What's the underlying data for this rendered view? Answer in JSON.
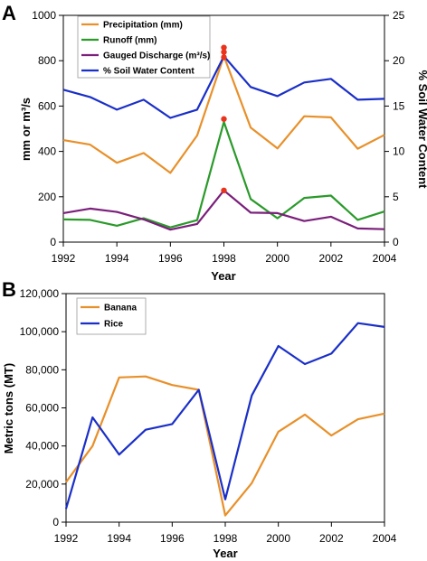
{
  "chart_data": [
    {
      "panel": "A",
      "type": "line",
      "x": [
        1992,
        1993,
        1994,
        1995,
        1996,
        1997,
        1998,
        1999,
        2000,
        2001,
        2002,
        2003,
        2004
      ],
      "xlabel": "Year",
      "ylabel": "mm or m³/s",
      "y2label": "% Soil Water Content",
      "xlim": [
        1992,
        2004
      ],
      "ylim": [
        0,
        1000
      ],
      "y2lim": [
        0,
        25
      ],
      "xticks": [
        "1992",
        "1994",
        "1996",
        "1998",
        "2000",
        "2002",
        "2004"
      ],
      "yticks": [
        "0",
        "200",
        "400",
        "600",
        "800",
        "1000"
      ],
      "y2ticks": [
        "0",
        "5",
        "10",
        "15",
        "20",
        "25"
      ],
      "grid": false,
      "legend_position": "top-left",
      "series": [
        {
          "name": "Precipitation (mm)",
          "color": "#e8902a",
          "axis": "left",
          "values": [
            450,
            430,
            350,
            393,
            305,
            470,
            820,
            505,
            413,
            555,
            550,
            412,
            473
          ]
        },
        {
          "name": "Runoff (mm)",
          "color": "#2a9a2a",
          "axis": "left",
          "values": [
            100,
            98,
            72,
            105,
            65,
            97,
            530,
            190,
            105,
            195,
            205,
            98,
            135
          ]
        },
        {
          "name": "Gauged Discharge (m³/s)",
          "color": "#7a1f7a",
          "axis": "left",
          "values": [
            128,
            148,
            133,
            100,
            55,
            80,
            228,
            130,
            128,
            93,
            112,
            60,
            57
          ]
        },
        {
          "name": "% Soil Water Content",
          "color": "#1a2fc8",
          "axis": "right",
          "values": [
            16.8,
            16.0,
            14.6,
            15.7,
            13.7,
            14.6,
            20.5,
            17.1,
            16.1,
            17.6,
            18.0,
            15.7,
            15.8
          ]
        }
      ],
      "highlight_markers": {
        "color": "#e8341c",
        "points": [
          [
            1998,
            858
          ],
          [
            1998,
            838
          ],
          [
            1998,
            815
          ],
          [
            1998,
            543
          ],
          [
            1998,
            228
          ]
        ]
      }
    },
    {
      "panel": "B",
      "type": "line",
      "x": [
        1992,
        1993,
        1994,
        1995,
        1996,
        1997,
        1998,
        1999,
        2000,
        2001,
        2002,
        2003,
        2004
      ],
      "xlabel": "Year",
      "ylabel": "Metric tons (MT)",
      "xlim": [
        1992,
        2004
      ],
      "ylim": [
        0,
        120000
      ],
      "xticks": [
        "1992",
        "1994",
        "1996",
        "1998",
        "2000",
        "2002",
        "2004"
      ],
      "yticks": [
        "0",
        "20,000",
        "40,000",
        "60,000",
        "80,000",
        "100,000",
        "120,000"
      ],
      "grid": false,
      "legend_position": "top-left",
      "series": [
        {
          "name": "Banana",
          "color": "#e8902a",
          "values": [
            21000,
            40000,
            76000,
            76500,
            72000,
            69500,
            3500,
            20500,
            47500,
            56500,
            45500,
            54000,
            57000
          ]
        },
        {
          "name": "Rice",
          "color": "#1a2fc8",
          "values": [
            7000,
            55000,
            35500,
            48500,
            51500,
            69500,
            12000,
            66500,
            92500,
            83000,
            88500,
            104500,
            102500
          ]
        }
      ]
    }
  ],
  "panels": {
    "a_letter": "A",
    "b_letter": "B"
  }
}
